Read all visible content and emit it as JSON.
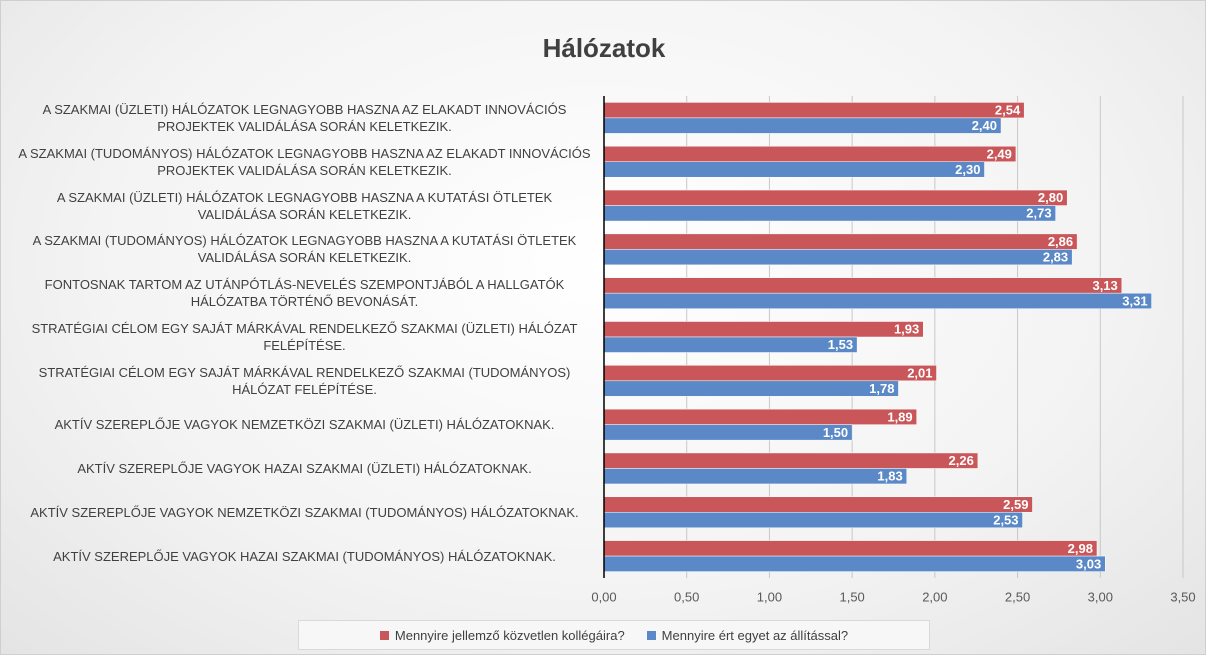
{
  "chart_data": {
    "type": "bar",
    "orientation": "horizontal",
    "title": "Hálózatok",
    "categories": [
      "A SZAKMAI (ÜZLETI) HÁLÓZATOK LEGNAGYOBB HASZNA AZ ELAKADT INNOVÁCIÓS PROJEKTEK VALIDÁLÁSA SORÁN KELETKEZIK.",
      "A SZAKMAI (TUDOMÁNYOS) HÁLÓZATOK LEGNAGYOBB HASZNA AZ ELAKADT INNOVÁCIÓS PROJEKTEK VALIDÁLÁSA SORÁN KELETKEZIK.",
      "A SZAKMAI (ÜZLETI) HÁLÓZATOK LEGNAGYOBB HASZNA A KUTATÁSI ÖTLETEK VALIDÁLÁSA SORÁN KELETKEZIK.",
      "A SZAKMAI (TUDOMÁNYOS) HÁLÓZATOK LEGNAGYOBB HASZNA A KUTATÁSI ÖTLETEK VALIDÁLÁSA SORÁN KELETKEZIK.",
      "FONTOSNAK TARTOM AZ UTÁNPÓTLÁS-NEVELÉS SZEMPONTJÁBÓL A HALLGATÓK HÁLÓZATBA TÖRTÉNŐ BEVONÁSÁT.",
      "STRATÉGIAI CÉLOM EGY SAJÁT MÁRKÁVAL RENDELKEZŐ SZAKMAI (ÜZLETI) HÁLÓZAT FELÉPÍTÉSE.",
      "STRATÉGIAI CÉLOM EGY SAJÁT MÁRKÁVAL RENDELKEZŐ SZAKMAI (TUDOMÁNYOS) HÁLÓZAT FELÉPÍTÉSE.",
      "AKTÍV SZEREPLŐJE VAGYOK NEMZETKÖZI SZAKMAI (ÜZLETI) HÁLÓZATOKNAK.",
      "AKTÍV SZEREPLŐJE VAGYOK HAZAI SZAKMAI (ÜZLETI) HÁLÓZATOKNAK.",
      "AKTÍV SZEREPLŐJE VAGYOK NEMZETKÖZI SZAKMAI (TUDOMÁNYOS) HÁLÓZATOKNAK.",
      "AKTÍV SZEREPLŐJE VAGYOK HAZAI SZAKMAI (TUDOMÁNYOS) HÁLÓZATOKNAK."
    ],
    "series": [
      {
        "name": "Mennyire jellemző közvetlen kollégáira?",
        "color": "#c9575a",
        "values": [
          2.54,
          2.49,
          2.8,
          2.86,
          3.13,
          1.93,
          2.01,
          1.89,
          2.26,
          2.59,
          2.98
        ],
        "value_labels": [
          "2,54",
          "2,49",
          "2,80",
          "2,86",
          "3,13",
          "1,93",
          "2,01",
          "1,89",
          "2,26",
          "2,59",
          "2,98"
        ]
      },
      {
        "name": "Mennyire ért egyet az állítással?",
        "color": "#5b88c7",
        "values": [
          2.4,
          2.3,
          2.73,
          2.83,
          3.31,
          1.53,
          1.78,
          1.5,
          1.83,
          2.53,
          3.03
        ],
        "value_labels": [
          "2,40",
          "2,30",
          "2,73",
          "2,83",
          "3,31",
          "1,53",
          "1,78",
          "1,50",
          "1,83",
          "2,53",
          "3,03"
        ]
      }
    ],
    "xlim": [
      0,
      3.5
    ],
    "xticks": [
      {
        "value": 0,
        "label": "0,00"
      },
      {
        "value": 0.5,
        "label": "0,50"
      },
      {
        "value": 1,
        "label": "1,00"
      },
      {
        "value": 1.5,
        "label": "1,50"
      },
      {
        "value": 2,
        "label": "2,00"
      },
      {
        "value": 2.5,
        "label": "2,50"
      },
      {
        "value": 3,
        "label": "3,00"
      },
      {
        "value": 3.5,
        "label": "3,50"
      }
    ],
    "grid": true,
    "legend": "bottom"
  }
}
